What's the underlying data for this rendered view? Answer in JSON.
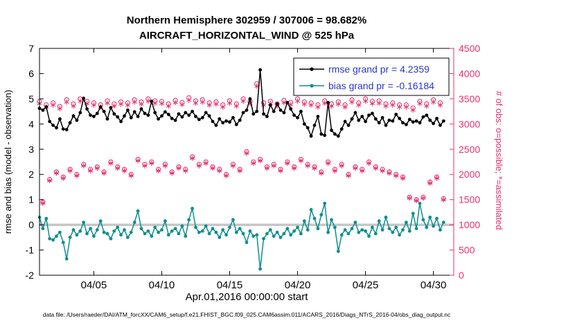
{
  "figure": {
    "background": "#ffffff",
    "caption": "data file: /Users/raeder/DAI/ATM_forcXX/CAM6_setup/f.e21.FHIST_BGC.f09_025.CAM6assim.011/ACARS_2016/Diags_NTrS_2016-04/obs_diag_output.nc"
  },
  "chart_data": {
    "type": "line",
    "title": "Northern Hemisphere 302959 / 307006 = 98.682%",
    "subtitle": "AIRCRAFT_HORIZONTAL_WIND @ 525 hPa",
    "xlabel": "Apr.01,2016 00:00:00 start",
    "ylabel_left": "rmse and bias (model - observation)",
    "ylabel_right": "# of obs: o=possible; *=assimilated",
    "ylim_left": [
      -2,
      7
    ],
    "yticks_left": [
      -2,
      -1,
      0,
      1,
      2,
      3,
      4,
      5,
      6,
      7
    ],
    "ylim_right": [
      0,
      4500
    ],
    "yticks_right": [
      0,
      500,
      1000,
      1500,
      2000,
      2500,
      3000,
      3500,
      4000,
      4500
    ],
    "xlim_days": [
      0,
      30.5
    ],
    "xticks": [
      {
        "day": 4,
        "label": "04/05"
      },
      {
        "day": 9,
        "label": "04/10"
      },
      {
        "day": 14,
        "label": "04/15"
      },
      {
        "day": 19,
        "label": "04/20"
      },
      {
        "day": 24,
        "label": "04/25"
      },
      {
        "day": 29,
        "label": "04/30"
      }
    ],
    "x_start_day": 0,
    "x_step_days": 0.25,
    "n_points": 120,
    "grand_stats": {
      "rmse": 4.2359,
      "bias": -0.16184
    },
    "zero_line": {
      "value": 0,
      "color": "#c6c6c6"
    },
    "legend_text_color": "#2a35c8",
    "legend": [
      {
        "label": "rmse grand pr = 4.2359",
        "color": "#000000"
      },
      {
        "label": "bias grand pr = -0.16184",
        "color": "#0e8e8e"
      }
    ],
    "series": [
      {
        "name": "rmse",
        "axis": "left",
        "marker": "filled-circle",
        "color": "#000000",
        "values": [
          4.62,
          4.55,
          4.68,
          4.1,
          3.95,
          3.85,
          4.2,
          3.8,
          3.78,
          4.05,
          4.32,
          4.15,
          4.45,
          5.02,
          4.6,
          4.35,
          4.3,
          4.42,
          4.68,
          4.5,
          4.2,
          4.65,
          4.4,
          4.28,
          4.1,
          4.32,
          4.55,
          4.25,
          4.48,
          4.3,
          4.6,
          4.42,
          4.35,
          4.9,
          4.45,
          4.2,
          4.32,
          4.48,
          4.38,
          4.22,
          4.15,
          4.4,
          4.28,
          4.45,
          4.35,
          4.5,
          4.3,
          4.18,
          4.25,
          4.45,
          4.32,
          4.1,
          3.95,
          4.2,
          4.05,
          4.12,
          4.08,
          4.25,
          3.98,
          4.15,
          4.45,
          4.55,
          5.0,
          4.4,
          4.5,
          6.15,
          4.4,
          4.3,
          4.75,
          4.5,
          4.8,
          4.55,
          4.45,
          4.85,
          4.6,
          4.35,
          4.25,
          4.5,
          4.0,
          3.85,
          3.52,
          3.95,
          4.3,
          3.6,
          3.55,
          4.85,
          3.75,
          3.6,
          3.52,
          3.8,
          4.1,
          3.95,
          4.2,
          4.45,
          4.15,
          4.3,
          4.1,
          4.35,
          4.42,
          4.2,
          4.05,
          4.25,
          3.95,
          4.15,
          4.12,
          4.38,
          4.22,
          4.05,
          3.98,
          4.18,
          4.08,
          4.12,
          4.05,
          4.28,
          4.35,
          4.15,
          4.02,
          4.22,
          3.95,
          4.12
        ]
      },
      {
        "name": "bias",
        "axis": "left",
        "marker": "filled-circle",
        "color": "#0e8e8e",
        "values": [
          0.3,
          -0.15,
          0.25,
          -0.55,
          -0.6,
          -0.45,
          -0.3,
          -0.7,
          -1.35,
          -0.5,
          -0.2,
          -0.4,
          -0.25,
          0.1,
          -0.35,
          -0.15,
          -0.45,
          -0.2,
          0.15,
          -0.3,
          -0.35,
          -0.55,
          -0.25,
          -0.1,
          -0.4,
          -0.2,
          -0.5,
          -0.3,
          0.1,
          0.55,
          -0.15,
          -0.35,
          -0.25,
          -0.45,
          -0.1,
          -0.3,
          -0.2,
          0.15,
          -0.4,
          -0.25,
          -0.15,
          -0.35,
          -0.05,
          -0.45,
          0.2,
          0.65,
          -0.1,
          -0.3,
          -0.25,
          -0.05,
          -0.35,
          -0.15,
          -0.3,
          -0.5,
          -0.2,
          -0.4,
          -0.1,
          0.2,
          -0.3,
          -0.15,
          -0.35,
          -0.7,
          -0.25,
          -0.45,
          -0.4,
          -1.75,
          -0.55,
          -0.35,
          -0.2,
          -0.45,
          -0.3,
          -0.5,
          -0.35,
          -0.15,
          -0.4,
          -0.25,
          -0.1,
          -0.35,
          0.15,
          -0.2,
          0.6,
          0.25,
          -0.15,
          0.4,
          0.85,
          -0.3,
          0.2,
          -0.1,
          -1.05,
          -0.4,
          -0.2,
          -0.35,
          -0.15,
          0.1,
          -0.3,
          -0.2,
          -0.25,
          -0.45,
          -0.1,
          -0.35,
          0.15,
          -0.2,
          0.3,
          -0.15,
          -0.3,
          -0.1,
          -0.4,
          -0.2,
          0.1,
          -0.25,
          0.45,
          -0.15,
          0.85,
          0.2,
          -0.1,
          0.3,
          -0.05,
          0.25,
          -0.2,
          0.1
        ]
      },
      {
        "name": "possible",
        "axis": "right",
        "marker": "o",
        "color": "#e8306e",
        "values": [
          3450,
          1450,
          3380,
          1900,
          3420,
          2050,
          3350,
          1950,
          3480,
          2100,
          3400,
          2000,
          3500,
          2200,
          3450,
          2100,
          3420,
          2150,
          3380,
          2050,
          3460,
          2250,
          3400,
          2150,
          3440,
          2100,
          3420,
          2000,
          3480,
          2300,
          3440,
          2200,
          3500,
          2250,
          3460,
          2100,
          3450,
          2200,
          3400,
          2050,
          3470,
          2150,
          3430,
          2100,
          3520,
          2350,
          3460,
          2200,
          3480,
          2250,
          3420,
          2150,
          3440,
          2100,
          3380,
          2000,
          3460,
          2200,
          3400,
          2100,
          3500,
          2450,
          3450,
          2250,
          3800,
          2300,
          3420,
          2150,
          3450,
          2200,
          3400,
          2100,
          3470,
          2250,
          3430,
          2150,
          3500,
          2300,
          3440,
          2200,
          3420,
          2150,
          3380,
          2050,
          3460,
          2250,
          3400,
          2100,
          3440,
          2200,
          3380,
          2000,
          3480,
          2150,
          3420,
          2100,
          3500,
          2250,
          3450,
          2150,
          3460,
          2100,
          3400,
          2050,
          3420,
          2000,
          3380,
          1950,
          3380,
          1550,
          3320,
          1500,
          3450,
          1550,
          3400,
          1850,
          3480,
          1950,
          3420,
          1520
        ]
      },
      {
        "name": "assimilated",
        "axis": "right",
        "marker": "*",
        "color": "#e8306e",
        "values": [
          3405,
          1430,
          3336,
          1875,
          3376,
          2023,
          3306,
          1925,
          3435,
          2072,
          3356,
          1974,
          3455,
          2171,
          3405,
          2072,
          3376,
          2122,
          3336,
          2023,
          3415,
          2221,
          3356,
          2122,
          3395,
          2072,
          3376,
          1974,
          3435,
          2270,
          3395,
          2171,
          3455,
          2221,
          3415,
          2072,
          3405,
          2171,
          3356,
          2023,
          3425,
          2122,
          3385,
          2072,
          3474,
          2319,
          3415,
          2171,
          3435,
          2221,
          3376,
          2122,
          3395,
          2072,
          3336,
          1974,
          3415,
          2171,
          3356,
          2072,
          3455,
          2418,
          3405,
          2221,
          3751,
          2270,
          3376,
          2122,
          3405,
          2171,
          3356,
          2072,
          3425,
          2221,
          3385,
          2122,
          3455,
          2270,
          3395,
          2171,
          3376,
          2122,
          3336,
          2023,
          3415,
          2221,
          3356,
          2072,
          3395,
          2171,
          3336,
          1974,
          3435,
          2122,
          3376,
          2072,
          3455,
          2221,
          3405,
          2122,
          3415,
          2072,
          3356,
          2023,
          3376,
          1974,
          3336,
          1925,
          3336,
          1530,
          3277,
          1481,
          3405,
          1530,
          3356,
          1826,
          3435,
          1925,
          3376,
          1500
        ]
      }
    ]
  }
}
